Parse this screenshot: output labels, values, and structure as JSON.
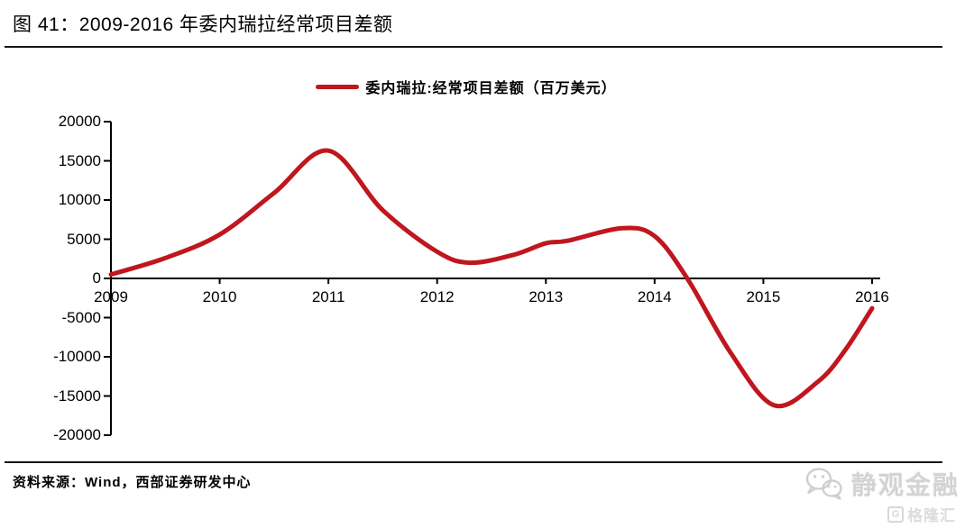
{
  "header": {
    "title": "图 41：2009-2016 年委内瑞拉经常项目差额"
  },
  "chart_data": {
    "type": "line",
    "title": "2009-2016 年委内瑞拉经常项目差额",
    "legend": "委内瑞拉:经常项目差额（百万美元）",
    "unit": "百万美元",
    "series_color": "#c0161e",
    "axis_color": "#000000",
    "xlabel": "",
    "ylabel": "",
    "ylim": [
      -20000,
      20000
    ],
    "ytick_step": 5000,
    "grid": false,
    "legend_position": "top-center",
    "ytick_labels": [
      "20000",
      "15000",
      "10000",
      "5000",
      "0",
      "-5000",
      "-10000",
      "-15000",
      "-20000"
    ],
    "xtick_labels": [
      "2009",
      "2010",
      "2011",
      "2012",
      "2013",
      "2014",
      "2015",
      "2016"
    ],
    "categories": [
      2009,
      2010,
      2011,
      2012,
      2013,
      2014,
      2015,
      2016
    ],
    "points": [
      [
        2009.0,
        500
      ],
      [
        2009.5,
        2600
      ],
      [
        2010.0,
        5600
      ],
      [
        2010.5,
        10900
      ],
      [
        2011.0,
        16300
      ],
      [
        2011.5,
        8700
      ],
      [
        2012.0,
        3400
      ],
      [
        2012.3,
        2000
      ],
      [
        2012.7,
        3000
      ],
      [
        2013.0,
        4500
      ],
      [
        2013.2,
        4800
      ],
      [
        2013.7,
        6400
      ],
      [
        2014.0,
        5400
      ],
      [
        2014.3,
        0
      ],
      [
        2014.7,
        -9500
      ],
      [
        2015.1,
        -16200
      ],
      [
        2015.5,
        -13200
      ],
      [
        2015.75,
        -9200
      ],
      [
        2016.0,
        -3800
      ]
    ]
  },
  "footer": {
    "source": "资料来源：Wind，西部证券研发中心"
  },
  "watermark": {
    "brand": "静观金融",
    "platform": "格隆汇",
    "platform_logo": "G"
  }
}
